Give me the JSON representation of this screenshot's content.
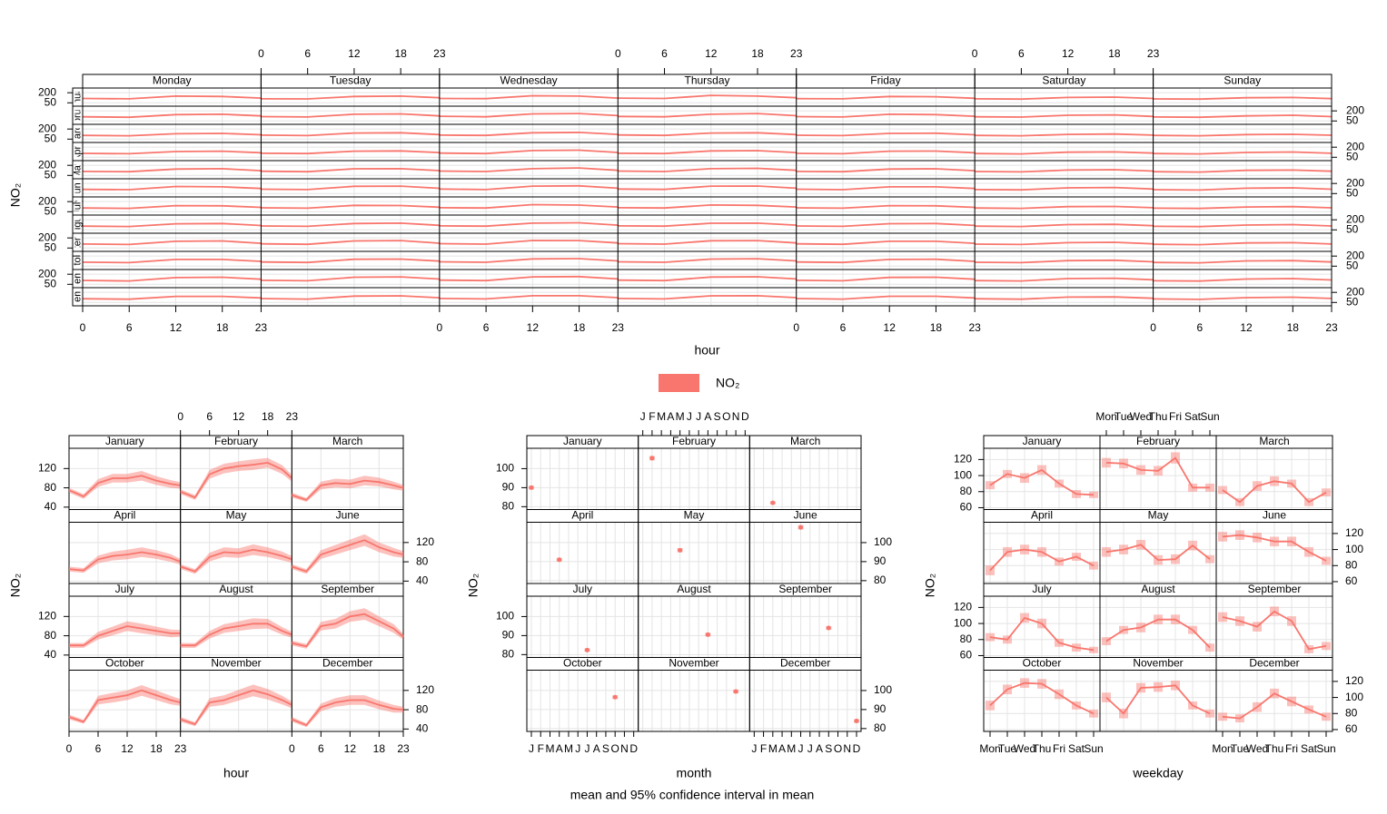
{
  "legend": {
    "label": "NO₂",
    "color": "#f8766d"
  },
  "caption": "mean and 95% confidence interval in mean",
  "chart_data": [
    {
      "type": "panel-lines",
      "xlabel": "hour",
      "ylabel": "NO₂",
      "color": "#f8766d",
      "weekdays": [
        "Monday",
        "Tuesday",
        "Wednesday",
        "Thursday",
        "Friday",
        "Saturday",
        "Sunday"
      ],
      "months": [
        "January",
        "February",
        "March",
        "April",
        "May",
        "June",
        "July",
        "August",
        "September",
        "October",
        "November",
        "December"
      ],
      "x": [
        0,
        6,
        12,
        18,
        23
      ],
      "xlim": [
        0,
        23
      ],
      "xticks": [
        0,
        6,
        12,
        18,
        23
      ],
      "ylim": [
        0,
        270
      ],
      "yticks": [
        50,
        200
      ],
      "values": [
        [
          [
            115,
            110,
            150,
            145,
            120
          ],
          [
            110,
            108,
            145,
            150,
            125
          ],
          [
            115,
            112,
            155,
            150,
            120
          ],
          [
            120,
            115,
            160,
            150,
            125
          ],
          [
            112,
            110,
            145,
            140,
            118
          ],
          [
            110,
            105,
            130,
            135,
            115
          ],
          [
            108,
            105,
            125,
            130,
            112
          ]
        ],
        [
          [
            112,
            105,
            145,
            150,
            125
          ],
          [
            115,
            110,
            150,
            155,
            125
          ],
          [
            120,
            112,
            155,
            160,
            130
          ],
          [
            118,
            112,
            150,
            160,
            128
          ],
          [
            115,
            110,
            150,
            145,
            120
          ],
          [
            112,
            108,
            135,
            140,
            118
          ],
          [
            110,
            105,
            125,
            135,
            115
          ]
        ],
        [
          [
            105,
            100,
            130,
            135,
            115
          ],
          [
            110,
            102,
            140,
            145,
            118
          ],
          [
            110,
            105,
            145,
            150,
            120
          ],
          [
            112,
            105,
            140,
            145,
            118
          ],
          [
            108,
            102,
            135,
            138,
            115
          ],
          [
            105,
            100,
            120,
            125,
            110
          ],
          [
            105,
            100,
            118,
            122,
            108
          ]
        ],
        [
          [
            108,
            102,
            135,
            140,
            118
          ],
          [
            110,
            105,
            140,
            145,
            120
          ],
          [
            112,
            105,
            150,
            155,
            122
          ],
          [
            110,
            105,
            145,
            148,
            120
          ],
          [
            108,
            102,
            140,
            142,
            118
          ],
          [
            105,
            100,
            125,
            130,
            112
          ],
          [
            105,
            100,
            122,
            128,
            110
          ]
        ],
        [
          [
            110,
            105,
            145,
            150,
            120
          ],
          [
            112,
            105,
            148,
            150,
            122
          ],
          [
            115,
            108,
            150,
            160,
            125
          ],
          [
            115,
            108,
            150,
            155,
            125
          ],
          [
            110,
            105,
            145,
            148,
            120
          ],
          [
            108,
            102,
            130,
            135,
            115
          ],
          [
            105,
            100,
            125,
            130,
            112
          ]
        ],
        [
          [
            112,
            108,
            155,
            150,
            125
          ],
          [
            115,
            110,
            158,
            160,
            128
          ],
          [
            118,
            110,
            160,
            165,
            130
          ],
          [
            118,
            112,
            160,
            162,
            130
          ],
          [
            115,
            108,
            150,
            150,
            125
          ],
          [
            110,
            105,
            135,
            140,
            118
          ],
          [
            108,
            102,
            130,
            135,
            115
          ]
        ],
        [
          [
            105,
            100,
            140,
            138,
            115
          ],
          [
            108,
            102,
            145,
            142,
            118
          ],
          [
            110,
            105,
            155,
            148,
            120
          ],
          [
            110,
            105,
            150,
            145,
            120
          ],
          [
            108,
            102,
            140,
            138,
            115
          ],
          [
            105,
            100,
            125,
            128,
            110
          ],
          [
            102,
            98,
            120,
            125,
            108
          ]
        ],
        [
          [
            105,
            100,
            140,
            145,
            115
          ],
          [
            108,
            102,
            145,
            150,
            118
          ],
          [
            110,
            105,
            150,
            155,
            120
          ],
          [
            110,
            105,
            148,
            150,
            120
          ],
          [
            108,
            102,
            142,
            145,
            116
          ],
          [
            105,
            100,
            128,
            132,
            112
          ],
          [
            102,
            98,
            122,
            128,
            108
          ]
        ],
        [
          [
            110,
            102,
            150,
            155,
            120
          ],
          [
            112,
            105,
            155,
            160,
            122
          ],
          [
            115,
            108,
            162,
            160,
            125
          ],
          [
            115,
            108,
            158,
            160,
            125
          ],
          [
            112,
            105,
            150,
            150,
            120
          ],
          [
            108,
            102,
            130,
            135,
            112
          ],
          [
            105,
            100,
            125,
            130,
            110
          ]
        ],
        [
          [
            110,
            102,
            150,
            150,
            122
          ],
          [
            112,
            105,
            152,
            155,
            125
          ],
          [
            115,
            108,
            158,
            162,
            128
          ],
          [
            115,
            108,
            155,
            160,
            128
          ],
          [
            112,
            105,
            150,
            152,
            122
          ],
          [
            108,
            102,
            132,
            138,
            115
          ],
          [
            105,
            100,
            128,
            132,
            112
          ]
        ],
        [
          [
            108,
            100,
            150,
            155,
            125
          ],
          [
            110,
            102,
            155,
            160,
            128
          ],
          [
            112,
            105,
            160,
            165,
            130
          ],
          [
            112,
            105,
            158,
            162,
            130
          ],
          [
            110,
            102,
            152,
            155,
            125
          ],
          [
            105,
            100,
            135,
            140,
            118
          ],
          [
            102,
            98,
            128,
            135,
            115
          ]
        ],
        [
          [
            105,
            98,
            140,
            140,
            118
          ],
          [
            108,
            100,
            145,
            148,
            120
          ],
          [
            110,
            102,
            150,
            150,
            122
          ],
          [
            110,
            102,
            148,
            150,
            122
          ],
          [
            108,
            100,
            142,
            142,
            118
          ],
          [
            105,
            98,
            130,
            132,
            112
          ],
          [
            102,
            96,
            122,
            128,
            110
          ]
        ]
      ]
    },
    {
      "type": "panel-band",
      "xlabel": "hour",
      "ylabel": "NO₂",
      "color": "#f8766d",
      "panels": [
        "January",
        "February",
        "March",
        "April",
        "May",
        "June",
        "July",
        "August",
        "September",
        "October",
        "November",
        "December"
      ],
      "x": [
        0,
        3,
        6,
        9,
        12,
        15,
        18,
        21,
        23
      ],
      "xlim": [
        0,
        23
      ],
      "xticks": [
        0,
        6,
        12,
        18,
        23
      ],
      "ylim": [
        35,
        162
      ],
      "yticks": [
        40,
        80,
        120
      ],
      "values": [
        [
          75,
          62,
          90,
          100,
          100,
          105,
          95,
          88,
          85
        ],
        [
          72,
          60,
          108,
          120,
          125,
          128,
          132,
          118,
          100
        ],
        [
          65,
          55,
          85,
          90,
          88,
          95,
          92,
          85,
          80
        ],
        [
          65,
          62,
          85,
          92,
          95,
          100,
          95,
          88,
          80
        ],
        [
          70,
          60,
          90,
          100,
          98,
          105,
          100,
          92,
          85
        ],
        [
          70,
          60,
          95,
          105,
          115,
          125,
          110,
          100,
          95
        ],
        [
          60,
          60,
          80,
          90,
          100,
          95,
          90,
          85,
          85
        ],
        [
          60,
          60,
          82,
          95,
          100,
          105,
          105,
          90,
          82
        ],
        [
          65,
          58,
          100,
          105,
          120,
          125,
          110,
          95,
          78
        ],
        [
          65,
          55,
          100,
          105,
          110,
          120,
          110,
          100,
          95
        ],
        [
          60,
          50,
          95,
          100,
          110,
          120,
          112,
          100,
          90
        ],
        [
          60,
          48,
          85,
          95,
          100,
          100,
          90,
          82,
          80
        ]
      ],
      "error": [
        [
          5,
          5,
          8,
          9,
          9,
          10,
          9,
          8,
          7
        ],
        [
          5,
          5,
          9,
          10,
          10,
          11,
          10,
          9,
          7
        ],
        [
          5,
          4,
          8,
          9,
          9,
          10,
          9,
          8,
          6
        ],
        [
          5,
          5,
          8,
          9,
          10,
          10,
          9,
          8,
          6
        ],
        [
          5,
          5,
          9,
          10,
          10,
          11,
          10,
          9,
          7
        ],
        [
          5,
          5,
          9,
          10,
          11,
          12,
          10,
          9,
          7
        ],
        [
          5,
          5,
          8,
          9,
          10,
          10,
          9,
          8,
          7
        ],
        [
          5,
          5,
          8,
          9,
          10,
          11,
          10,
          8,
          6
        ],
        [
          5,
          5,
          9,
          10,
          11,
          12,
          10,
          9,
          6
        ],
        [
          5,
          4,
          9,
          10,
          10,
          11,
          10,
          9,
          7
        ],
        [
          5,
          4,
          9,
          10,
          11,
          12,
          11,
          9,
          7
        ],
        [
          5,
          4,
          8,
          9,
          10,
          10,
          9,
          8,
          6
        ]
      ]
    },
    {
      "type": "panel-points",
      "xlabel": "month",
      "ylabel": "NO₂",
      "color": "#f8766d",
      "panels": [
        "January",
        "February",
        "March",
        "April",
        "May",
        "June",
        "July",
        "August",
        "September",
        "October",
        "November",
        "December"
      ],
      "categories": [
        "J",
        "F",
        "M",
        "A",
        "M",
        "J",
        "J",
        "A",
        "S",
        "O",
        "N",
        "D"
      ],
      "ylim": [
        78.5,
        110.7
      ],
      "yticks": [
        80,
        90,
        100
      ],
      "values": [
        90,
        105.5,
        82,
        91,
        96,
        108,
        82.4,
        90.5,
        94,
        96.5,
        99.5,
        84
      ],
      "error": [
        1,
        1.2,
        0.9,
        1,
        1.1,
        1.2,
        0.9,
        1,
        1,
        1,
        1,
        1
      ]
    },
    {
      "type": "panel-boxes",
      "xlabel": "weekday",
      "ylabel": "NO₂",
      "color": "#f8766d",
      "panels": [
        "January",
        "February",
        "March",
        "April",
        "May",
        "June",
        "July",
        "August",
        "September",
        "October",
        "November",
        "December"
      ],
      "categories": [
        "Mon",
        "Tue",
        "Wed",
        "Thu",
        "Fri",
        "Sat",
        "Sun"
      ],
      "ylim": [
        57.7,
        134
      ],
      "yticks": [
        60,
        80,
        100,
        120
      ],
      "values": [
        [
          88,
          102,
          97,
          107,
          90,
          77,
          76
        ],
        [
          116,
          115,
          107,
          106,
          122,
          85,
          85
        ],
        [
          82,
          67,
          87,
          93,
          90,
          67,
          79
        ],
        [
          74,
          97,
          100,
          97,
          85,
          91,
          80
        ],
        [
          97,
          100,
          106,
          87,
          88,
          105,
          88
        ],
        [
          116,
          118,
          115,
          110,
          110,
          97,
          86
        ],
        [
          83,
          80,
          107,
          100,
          76,
          70,
          67
        ],
        [
          78,
          92,
          95,
          105,
          105,
          92,
          70
        ],
        [
          108,
          103,
          96,
          115,
          103,
          68,
          72
        ],
        [
          90,
          110,
          118,
          117,
          104,
          90,
          80
        ],
        [
          100,
          80,
          112,
          113,
          115,
          90,
          80
        ],
        [
          76,
          74,
          88,
          105,
          95,
          85,
          76
        ]
      ],
      "error": [
        [
          5,
          5,
          6,
          6,
          5,
          5,
          4
        ],
        [
          6,
          6,
          6,
          6,
          7,
          5,
          5
        ],
        [
          5,
          5,
          6,
          6,
          5,
          5,
          5
        ],
        [
          6,
          6,
          6,
          6,
          5,
          5,
          5
        ],
        [
          6,
          6,
          6,
          6,
          6,
          6,
          5
        ],
        [
          6,
          6,
          6,
          6,
          6,
          6,
          5
        ],
        [
          5,
          5,
          6,
          6,
          5,
          5,
          4
        ],
        [
          5,
          5,
          6,
          6,
          6,
          5,
          5
        ],
        [
          6,
          6,
          6,
          6,
          6,
          5,
          5
        ],
        [
          6,
          6,
          6,
          6,
          6,
          5,
          5
        ],
        [
          6,
          6,
          6,
          6,
          6,
          5,
          5
        ],
        [
          5,
          5,
          6,
          6,
          6,
          5,
          5
        ]
      ]
    }
  ]
}
